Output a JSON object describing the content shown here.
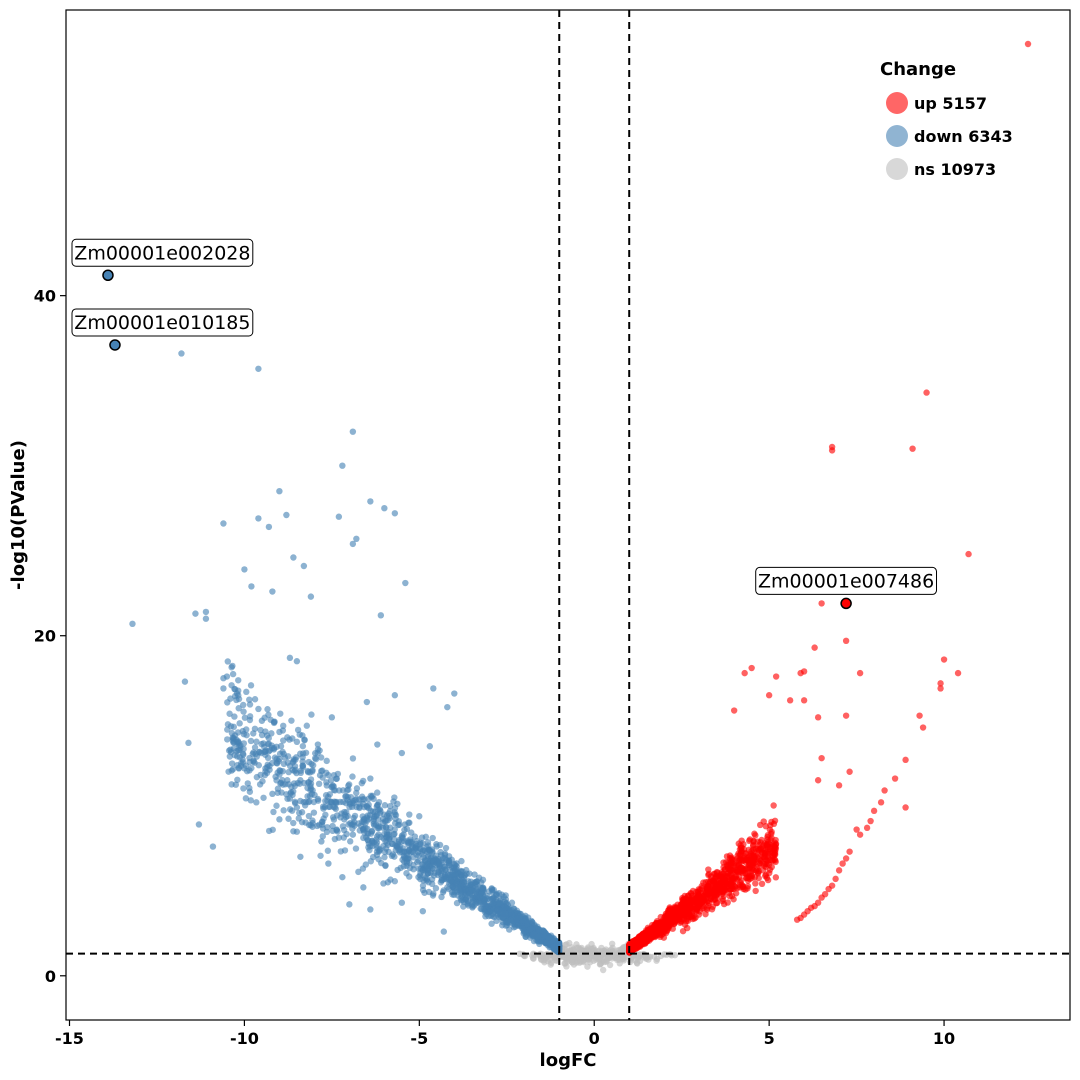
{
  "chart_data": {
    "type": "scatter",
    "xlabel": "logFC",
    "ylabel": "-log10(PValue)",
    "xlim": [
      -15.1,
      13.6
    ],
    "ylim": [
      -2.6,
      56.8
    ],
    "x_ticks": [
      -15,
      -10,
      -5,
      0,
      5,
      10
    ],
    "x_tick_labels": [
      "-15",
      "-10",
      "-5",
      "0",
      "5",
      "10"
    ],
    "y_ticks": [
      0,
      20,
      40
    ],
    "y_tick_labels": [
      "0",
      "20",
      "40"
    ],
    "grid": false,
    "legend_position": "top-right",
    "thresholds": {
      "logFC": [
        -1,
        1
      ],
      "neg_log10_p": 1.3
    },
    "colors": {
      "up": "#ff0000",
      "down": "#4682b4",
      "ns": "#bebebe"
    },
    "legend": {
      "title": "Change",
      "items": [
        {
          "label": "up 5157",
          "category": "up",
          "color": "#ff6666"
        },
        {
          "label": "down 6343",
          "category": "down",
          "color": "#90b4d2"
        },
        {
          "label": "ns 10973",
          "category": "ns",
          "color": "#d8d8d8"
        }
      ]
    },
    "counts": {
      "up": 5157,
      "down": 6343,
      "ns": 10973
    },
    "annotations": [
      {
        "label": "Zm00001e002028",
        "x": -13.9,
        "y": 41.2,
        "category": "down"
      },
      {
        "label": "Zm00001e010185",
        "x": -13.7,
        "y": 37.1,
        "category": "down"
      },
      {
        "label": "Zm00001e007486",
        "x": 7.2,
        "y": 21.9,
        "category": "up"
      }
    ],
    "series": [
      {
        "name": "up",
        "points": [
          [
            12.4,
            54.8
          ],
          [
            9.5,
            34.3
          ],
          [
            6.8,
            31.1
          ],
          [
            6.8,
            30.9
          ],
          [
            9.1,
            31.0
          ],
          [
            10.7,
            24.8
          ],
          [
            6.5,
            21.9
          ],
          [
            7.2,
            19.7
          ],
          [
            6.3,
            19.3
          ],
          [
            10.0,
            18.6
          ],
          [
            9.9,
            17.2
          ],
          [
            9.9,
            16.9
          ],
          [
            10.4,
            17.8
          ],
          [
            7.6,
            17.8
          ],
          [
            5.2,
            17.6
          ],
          [
            6.0,
            17.9
          ],
          [
            5.9,
            17.8
          ],
          [
            6.0,
            16.2
          ],
          [
            5.6,
            16.2
          ],
          [
            4.3,
            17.8
          ],
          [
            4.5,
            18.1
          ],
          [
            9.3,
            15.3
          ],
          [
            9.4,
            14.6
          ],
          [
            7.2,
            15.3
          ],
          [
            6.4,
            15.2
          ],
          [
            5.0,
            16.5
          ],
          [
            4.0,
            15.6
          ],
          [
            8.9,
            12.7
          ],
          [
            8.6,
            11.6
          ],
          [
            8.3,
            10.9
          ],
          [
            7.3,
            12.0
          ],
          [
            6.5,
            12.8
          ],
          [
            7.0,
            11.2
          ],
          [
            6.4,
            11.5
          ],
          [
            8.9,
            9.9
          ],
          [
            8.2,
            10.2
          ],
          [
            8.0,
            9.7
          ],
          [
            7.9,
            9.1
          ],
          [
            7.8,
            8.7
          ],
          [
            7.6,
            8.3
          ],
          [
            7.5,
            8.6
          ],
          [
            7.3,
            7.3
          ],
          [
            7.2,
            6.9
          ],
          [
            7.1,
            6.6
          ],
          [
            7.0,
            6.2
          ],
          [
            6.9,
            5.7
          ],
          [
            6.8,
            5.3
          ],
          [
            6.7,
            5.1
          ],
          [
            6.6,
            4.8
          ],
          [
            6.5,
            4.6
          ],
          [
            6.4,
            4.3
          ],
          [
            6.3,
            4.1
          ],
          [
            6.2,
            4.0
          ],
          [
            6.1,
            3.8
          ],
          [
            6.0,
            3.6
          ],
          [
            5.9,
            3.4
          ],
          [
            5.8,
            3.3
          ]
        ]
      },
      {
        "name": "down",
        "points": [
          [
            -11.8,
            36.6
          ],
          [
            -9.6,
            35.7
          ],
          [
            -6.9,
            32.0
          ],
          [
            -7.2,
            30.0
          ],
          [
            -9.0,
            28.5
          ],
          [
            -6.4,
            27.9
          ],
          [
            -6.0,
            27.5
          ],
          [
            -5.7,
            27.2
          ],
          [
            -9.6,
            26.9
          ],
          [
            -10.6,
            26.6
          ],
          [
            -8.8,
            27.1
          ],
          [
            -9.3,
            26.4
          ],
          [
            -7.3,
            27.0
          ],
          [
            -6.8,
            25.7
          ],
          [
            -6.9,
            25.4
          ],
          [
            -5.4,
            23.1
          ],
          [
            -10.0,
            23.9
          ],
          [
            -9.8,
            22.9
          ],
          [
            -8.6,
            24.6
          ],
          [
            -8.3,
            24.1
          ],
          [
            -9.2,
            22.6
          ],
          [
            -8.1,
            22.3
          ],
          [
            -13.2,
            20.7
          ],
          [
            -11.4,
            21.3
          ],
          [
            -11.1,
            21.4
          ],
          [
            -11.1,
            21.0
          ],
          [
            -6.1,
            21.2
          ],
          [
            -11.7,
            17.3
          ],
          [
            -11.6,
            13.7
          ],
          [
            -10.6,
            17.5
          ],
          [
            -10.5,
            17.6
          ],
          [
            -10.6,
            16.9
          ],
          [
            -10.4,
            16.3
          ],
          [
            -9.5,
            15.0
          ],
          [
            -10.4,
            13.3
          ],
          [
            -10.0,
            12.2
          ],
          [
            -8.7,
            18.7
          ],
          [
            -8.5,
            18.5
          ],
          [
            -11.3,
            8.9
          ],
          [
            -10.9,
            7.6
          ],
          [
            -7.5,
            15.2
          ],
          [
            -6.5,
            16.1
          ],
          [
            -5.7,
            16.5
          ],
          [
            -4.6,
            16.9
          ],
          [
            -4.2,
            15.8
          ],
          [
            -4.0,
            16.6
          ],
          [
            -7.9,
            13.6
          ],
          [
            -6.2,
            13.6
          ],
          [
            -5.5,
            13.1
          ],
          [
            -4.7,
            13.5
          ],
          [
            -9.4,
            12.2
          ],
          [
            -8.4,
            11.5
          ],
          [
            -7.6,
            11.8
          ],
          [
            -6.4,
            11.6
          ],
          [
            -9.2,
            10.7
          ],
          [
            -8.5,
            9.9
          ],
          [
            -7.9,
            10.4
          ],
          [
            -7.0,
            10.2
          ],
          [
            -6.5,
            9.3
          ],
          [
            -5.7,
            9.5
          ],
          [
            -9.0,
            9.2
          ],
          [
            -8.6,
            8.5
          ],
          [
            -7.8,
            7.9
          ],
          [
            -6.9,
            8.3
          ],
          [
            -6.2,
            7.5
          ],
          [
            -8.4,
            7.0
          ],
          [
            -7.6,
            6.6
          ],
          [
            -7.2,
            5.8
          ],
          [
            -6.6,
            5.2
          ],
          [
            -5.9,
            5.5
          ],
          [
            -7.0,
            4.2
          ],
          [
            -6.4,
            3.9
          ],
          [
            -5.5,
            4.3
          ],
          [
            -4.9,
            3.8
          ],
          [
            -4.3,
            2.6
          ]
        ]
      }
    ]
  }
}
